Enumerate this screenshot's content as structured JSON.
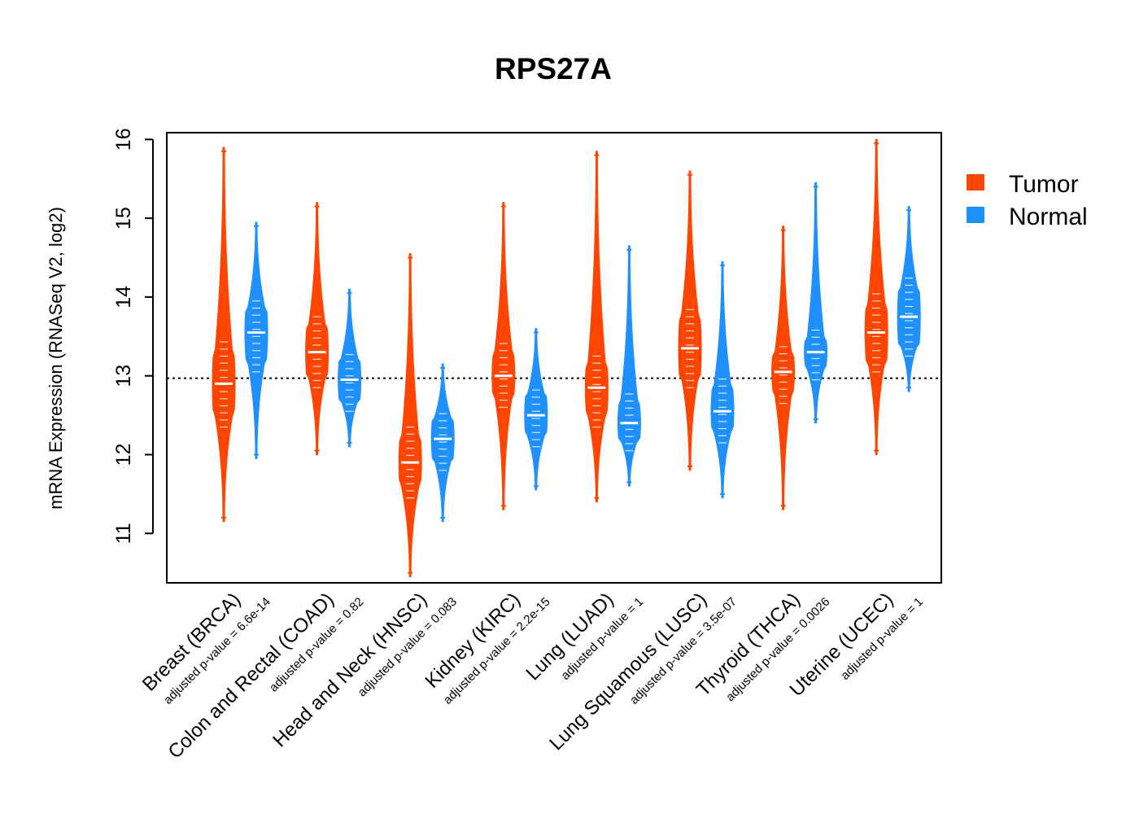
{
  "chart_data": {
    "type": "violin",
    "title": "RPS27A",
    "ylabel": "mRNA Expression (RNASeq V2, log2)",
    "xlabel": "",
    "ylim": [
      10.4,
      16.1
    ],
    "yticks": [
      11,
      12,
      13,
      14,
      15,
      16
    ],
    "reference_line": 12.97,
    "legend": {
      "position": "right",
      "entries": [
        {
          "name": "Tumor",
          "color": "#FF4500"
        },
        {
          "name": "Normal",
          "color": "#1E90FF"
        }
      ]
    },
    "colors": {
      "tumor": "#FF4500",
      "normal": "#1E90FF"
    },
    "categories": [
      {
        "label": "Breast (BRCA)",
        "pvalue": "adjusted p-value = 6.6e-14",
        "tumor": {
          "min": 11.15,
          "max": 15.9,
          "median": 12.9,
          "q1": 12.5,
          "q3": 13.3
        },
        "normal": {
          "min": 11.95,
          "max": 14.95,
          "median": 13.55,
          "q1": 13.2,
          "q3": 13.85
        }
      },
      {
        "label": "Colon and Rectal (COAD)",
        "pvalue": "adjusted p-value = 0.82",
        "tumor": {
          "min": 12.0,
          "max": 15.2,
          "median": 13.3,
          "q1": 13.0,
          "q3": 13.6
        },
        "normal": {
          "min": 12.1,
          "max": 14.1,
          "median": 12.95,
          "q1": 12.7,
          "q3": 13.2
        }
      },
      {
        "label": "Head and Neck (HNSC)",
        "pvalue": "adjusted p-value = 0.083",
        "tumor": {
          "min": 10.45,
          "max": 14.55,
          "median": 11.9,
          "q1": 11.6,
          "q3": 12.2
        },
        "normal": {
          "min": 11.15,
          "max": 13.15,
          "median": 12.2,
          "q1": 11.95,
          "q3": 12.45
        }
      },
      {
        "label": "Kidney (KIRC)",
        "pvalue": "adjusted p-value = 2.2e-15",
        "tumor": {
          "min": 11.3,
          "max": 15.2,
          "median": 13.0,
          "q1": 12.75,
          "q3": 13.3
        },
        "normal": {
          "min": 11.55,
          "max": 13.6,
          "median": 12.5,
          "q1": 12.25,
          "q3": 12.75
        }
      },
      {
        "label": "Lung (LUAD)",
        "pvalue": "adjusted p-value = 1",
        "tumor": {
          "min": 11.4,
          "max": 15.85,
          "median": 12.85,
          "q1": 12.5,
          "q3": 13.15
        },
        "normal": {
          "min": 11.6,
          "max": 14.65,
          "median": 12.4,
          "q1": 12.2,
          "q3": 12.65
        }
      },
      {
        "label": "Lung Squamous (LUSC)",
        "pvalue": "adjusted p-value = 3.5e-07",
        "tumor": {
          "min": 11.8,
          "max": 15.6,
          "median": 13.35,
          "q1": 13.0,
          "q3": 13.75
        },
        "normal": {
          "min": 11.45,
          "max": 14.45,
          "median": 12.55,
          "q1": 12.3,
          "q3": 12.85
        }
      },
      {
        "label": "Thyroid (THCA)",
        "pvalue": "adjusted p-value = 0.0026",
        "tumor": {
          "min": 11.3,
          "max": 14.9,
          "median": 13.05,
          "q1": 12.8,
          "q3": 13.25
        },
        "normal": {
          "min": 12.4,
          "max": 15.45,
          "median": 13.3,
          "q1": 13.1,
          "q3": 13.45
        }
      },
      {
        "label": "Uterine (UCEC)",
        "pvalue": "adjusted p-value = 1",
        "tumor": {
          "min": 12.0,
          "max": 16.0,
          "median": 13.55,
          "q1": 13.2,
          "q3": 13.9
        },
        "normal": {
          "min": 12.8,
          "max": 15.15,
          "median": 13.75,
          "q1": 13.4,
          "q3": 14.1
        }
      }
    ]
  }
}
